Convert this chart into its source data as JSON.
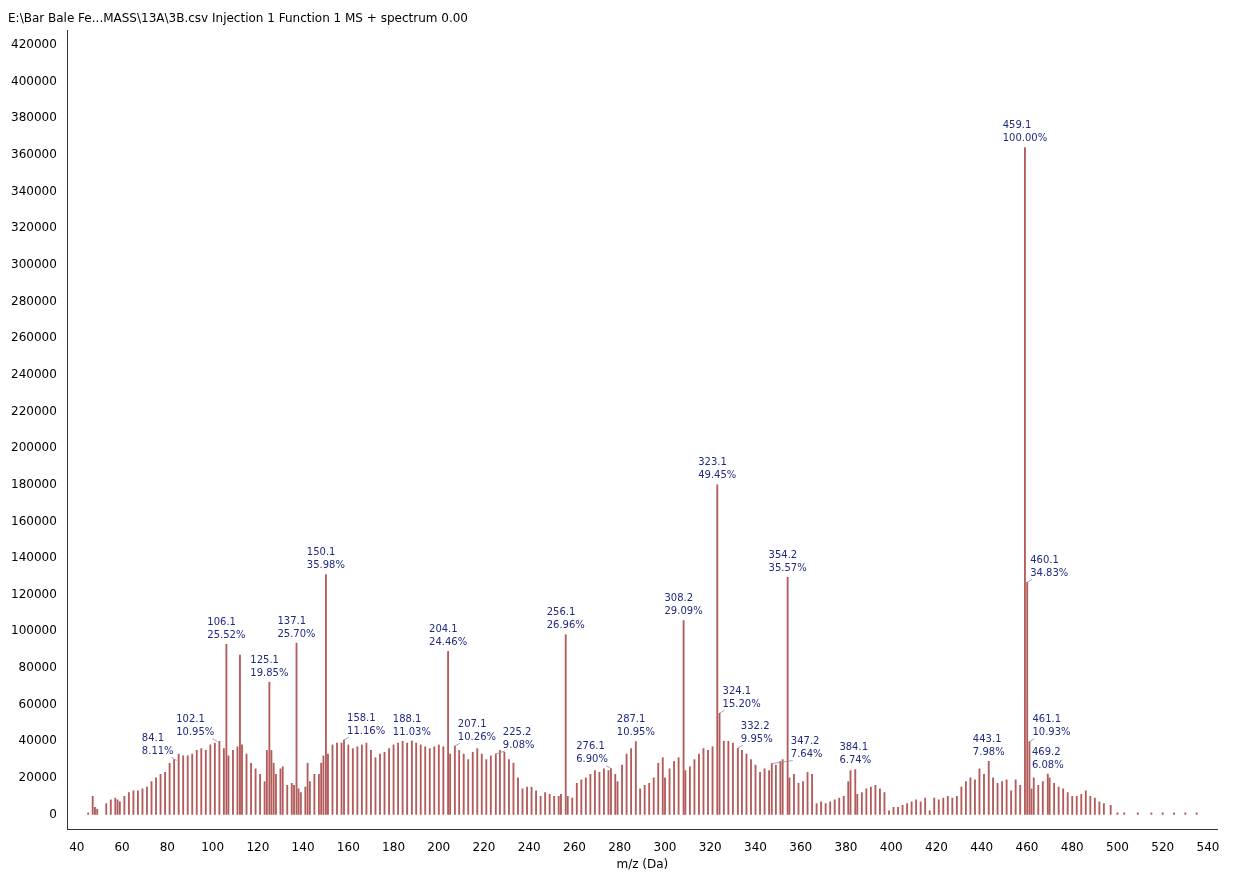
{
  "chart_data": {
    "type": "bar",
    "title": "E:\\Bar Bale Fe...MASS\\13A\\3B.csv Injection 1 Function 1 MS + spectrum 0.00",
    "xlabel": "m/z (Da)",
    "x": [
      45,
      47,
      48,
      49,
      53,
      55,
      57,
      58,
      59,
      61,
      63,
      65,
      67,
      69,
      71,
      73,
      75,
      77,
      79,
      81,
      83,
      85,
      87,
      89,
      91,
      93,
      95,
      97,
      99,
      101,
      103,
      105,
      106.1,
      107,
      109,
      111,
      112.1,
      113,
      115,
      117,
      119,
      121,
      123,
      124,
      125.1,
      126,
      127,
      128,
      130,
      131,
      133,
      135,
      136,
      137.1,
      138,
      139,
      141,
      142,
      143,
      145,
      147,
      148,
      149,
      150.1,
      151,
      153,
      155,
      157,
      158.1,
      160,
      162,
      164,
      166,
      168,
      170,
      172,
      174,
      176,
      178,
      180,
      182,
      184,
      186,
      188.1,
      190,
      192,
      194,
      196,
      198,
      200,
      202,
      204.1,
      205,
      207.1,
      209,
      211,
      213,
      215,
      217,
      219,
      221,
      223,
      225.2,
      227,
      229,
      231,
      233,
      235,
      237,
      239,
      241,
      243,
      245,
      247,
      249,
      251,
      253,
      254,
      256.1,
      257,
      259,
      261,
      263,
      265,
      267,
      269,
      271,
      273,
      275,
      276.1,
      278,
      279,
      281,
      283,
      285,
      287.1,
      289,
      291,
      293,
      295,
      297,
      299,
      300,
      302,
      304,
      306,
      308.2,
      309,
      311,
      313,
      315,
      317,
      319,
      321,
      323.1,
      324.1,
      326,
      328,
      330,
      332.2,
      334,
      336,
      338,
      340,
      342,
      344,
      346,
      347.2,
      349,
      351,
      352,
      354.2,
      355,
      357,
      359,
      361,
      363,
      365,
      367,
      369,
      371,
      373,
      375,
      377,
      379,
      381,
      382,
      384.1,
      385,
      387,
      389,
      391,
      393,
      395,
      397,
      399,
      401,
      403,
      405,
      407,
      409,
      411,
      413,
      415,
      417,
      419,
      421,
      423,
      425,
      427,
      429,
      431,
      433,
      435,
      437,
      439,
      441,
      443.1,
      445,
      447,
      449,
      451,
      453,
      455,
      457,
      459.1,
      460.1,
      461.1,
      462,
      463,
      465,
      467,
      469.2,
      470,
      472,
      474,
      476,
      478,
      480,
      482,
      484,
      486,
      488,
      490,
      492,
      494,
      497,
      500,
      503,
      509,
      515,
      520,
      525,
      530,
      535
    ],
    "values": [
      1000,
      10000,
      4000,
      3000,
      6000,
      8000,
      9000,
      8000,
      7000,
      10000,
      12000,
      13000,
      13000,
      14000,
      15000,
      18000,
      20000,
      22000,
      23000,
      28000,
      30000,
      33000,
      32000,
      32000,
      33000,
      35000,
      36000,
      35000,
      38000,
      39000,
      40000,
      36000,
      92900,
      32000,
      35000,
      37000,
      87000,
      38000,
      33000,
      28000,
      25000,
      22000,
      18000,
      35000,
      72250,
      35000,
      28000,
      22000,
      25000,
      26000,
      16000,
      17000,
      16000,
      93550,
      14000,
      12000,
      15000,
      28000,
      18000,
      22000,
      22000,
      28000,
      32000,
      130970,
      33000,
      38000,
      39000,
      39000,
      40620,
      38000,
      36000,
      37000,
      38000,
      39000,
      35000,
      31000,
      33000,
      34000,
      36000,
      38000,
      39000,
      40000,
      39000,
      40150,
      39000,
      38000,
      37000,
      36000,
      37000,
      38000,
      37000,
      89030,
      33000,
      37350,
      35000,
      33000,
      30000,
      34000,
      36000,
      33000,
      30000,
      32000,
      33050,
      35000,
      34000,
      30000,
      28000,
      20000,
      14000,
      15000,
      15000,
      13000,
      10000,
      12000,
      11000,
      10000,
      10000,
      11000,
      98130,
      10000,
      9000,
      17000,
      19000,
      20000,
      22000,
      24000,
      23000,
      25000,
      24000,
      25120,
      22000,
      18000,
      27000,
      33000,
      36000,
      39860,
      14000,
      16000,
      17000,
      20000,
      28000,
      31000,
      20000,
      25000,
      29000,
      31000,
      105890,
      24000,
      26000,
      30000,
      33000,
      36000,
      35000,
      37000,
      180000,
      55330,
      40000,
      40000,
      39000,
      36220,
      35000,
      33000,
      30000,
      27000,
      23000,
      25000,
      24000,
      27810,
      27000,
      29000,
      30000,
      129470,
      20000,
      22000,
      17000,
      18000,
      23000,
      22000,
      6000,
      7000,
      6000,
      7000,
      8000,
      9000,
      10000,
      18000,
      24000,
      24530,
      11000,
      12000,
      14000,
      15000,
      16000,
      14000,
      12000,
      2000,
      4000,
      4000,
      5000,
      6000,
      7000,
      8000,
      7000,
      9000,
      2000,
      9000,
      8000,
      9000,
      10000,
      9000,
      10000,
      15000,
      18000,
      20000,
      19000,
      25000,
      22000,
      29050,
      20000,
      17000,
      18000,
      19000,
      13000,
      19000,
      16000,
      364000,
      126780,
      39790,
      14000,
      20000,
      16000,
      18000,
      22130,
      20000,
      17000,
      15000,
      14000,
      12000,
      10000,
      10000,
      11000,
      13000,
      10000,
      9000,
      7000,
      6000,
      5000,
      1000,
      1000,
      1000,
      1000,
      1000,
      1000,
      1000,
      1000
    ],
    "color": "#b35c5c",
    "xlim": [
      36,
      544
    ],
    "xticks": [
      40,
      60,
      80,
      100,
      120,
      140,
      160,
      180,
      200,
      220,
      240,
      260,
      280,
      300,
      320,
      340,
      360,
      380,
      400,
      420,
      440,
      460,
      480,
      500,
      520,
      540
    ],
    "ylim": [
      -8000,
      428000
    ],
    "yticks": [
      0,
      20000,
      40000,
      60000,
      80000,
      100000,
      120000,
      140000,
      160000,
      180000,
      200000,
      220000,
      240000,
      260000,
      280000,
      300000,
      320000,
      340000,
      360000,
      380000,
      400000,
      420000
    ],
    "grid": false,
    "legend": false,
    "annotations": [
      {
        "text": "84.1\n8.11%",
        "x": 84.1,
        "y": 29520
      },
      {
        "text": "102.1\n10.95%",
        "x": 102.1,
        "y": 39860
      },
      {
        "text": "106.1\n25.52%",
        "x": 106.1,
        "y": 92900
      },
      {
        "text": "125.1\n19.85%",
        "x": 125.1,
        "y": 72250
      },
      {
        "text": "137.1\n25.70%",
        "x": 137.1,
        "y": 93550
      },
      {
        "text": "150.1\n35.98%",
        "x": 150.1,
        "y": 130970
      },
      {
        "text": "158.1\n11.16%",
        "x": 158.1,
        "y": 40620
      },
      {
        "text": "188.1\n11.03%",
        "x": 188.1,
        "y": 40150
      },
      {
        "text": "204.1\n24.46%",
        "x": 204.1,
        "y": 89030
      },
      {
        "text": "207.1\n10.26%",
        "x": 207.1,
        "y": 37350
      },
      {
        "text": "225.2\n9.08%",
        "x": 225.2,
        "y": 33050
      },
      {
        "text": "256.1\n26.96%",
        "x": 256.1,
        "y": 98130
      },
      {
        "text": "276.1\n6.90%",
        "x": 276.1,
        "y": 25120
      },
      {
        "text": "287.1\n10.95%",
        "x": 287.1,
        "y": 39860
      },
      {
        "text": "308.2\n29.09%",
        "x": 308.2,
        "y": 105890
      },
      {
        "text": "323.1\n49.45%",
        "x": 323.1,
        "y": 180000
      },
      {
        "text": "324.1\n15.20%",
        "x": 324.1,
        "y": 55330
      },
      {
        "text": "332.2\n9.95%",
        "x": 332.2,
        "y": 36220
      },
      {
        "text": "347.2\n7.64%",
        "x": 347.2,
        "y": 27810
      },
      {
        "text": "354.2\n35.57%",
        "x": 354.2,
        "y": 129470
      },
      {
        "text": "384.1\n6.74%",
        "x": 384.1,
        "y": 24530
      },
      {
        "text": "443.1\n7.98%",
        "x": 443.1,
        "y": 29050
      },
      {
        "text": "459.1\n100.00%",
        "x": 459.1,
        "y": 364000
      },
      {
        "text": "460.1\n34.83%",
        "x": 460.1,
        "y": 126780
      },
      {
        "text": "461.1\n10.93%",
        "x": 461.1,
        "y": 39790
      },
      {
        "text": "469.2\n6.08%",
        "x": 469.2,
        "y": 22130
      }
    ]
  }
}
